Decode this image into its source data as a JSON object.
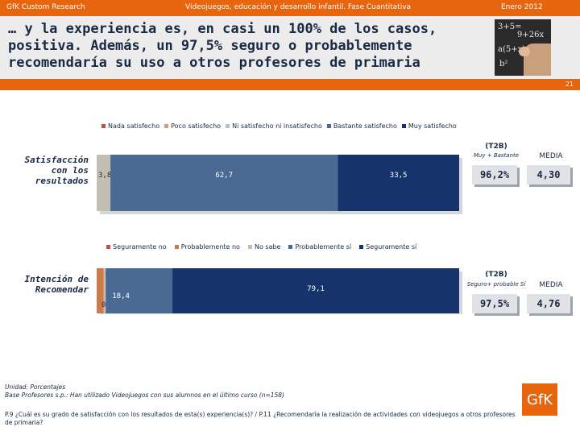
{
  "header": {
    "left": "GfK Custom Research",
    "center": "Videojuegos, educación y desarrollo infantil. Fase Cuantitativa",
    "right": "Enero 2012"
  },
  "title": "… y la experiencia es, en casi un 100% de los casos, positiva. Además, un 97,5% seguro o probablemente recomendaría su uso a otros profesores de primaria",
  "page_number": "21",
  "photo_chalk": [
    "3+5=",
    "9+26x",
    "a(5+x)",
    "b²"
  ],
  "colors": {
    "brand": "#e8650f"
  },
  "chart_data": [
    {
      "type": "bar",
      "orientation": "horizontal-stacked",
      "row_label": "Satisfacción con los resultados",
      "legend": [
        {
          "name": "Nada satisfecho",
          "color": "#c0504d"
        },
        {
          "name": "Poco satisfecho",
          "color": "#d99a77"
        },
        {
          "name": "Ni satisfecho ni insatisfecho",
          "color": "#c4bdb1"
        },
        {
          "name": "Bastante satisfecho",
          "color": "#4a6a94"
        },
        {
          "name": "Muy satisfecho",
          "color": "#16346b"
        }
      ],
      "series": [
        {
          "name": "Nada satisfecho",
          "value": 0,
          "label": ""
        },
        {
          "name": "Poco satisfecho",
          "value": 0,
          "label": ""
        },
        {
          "name": "Ni satisfecho ni insatisfecho",
          "value": 3.8,
          "label": "3,8"
        },
        {
          "name": "Bastante satisfecho",
          "value": 62.7,
          "label": "62,7"
        },
        {
          "name": "Muy satisfecho",
          "value": 33.5,
          "label": "33,5"
        }
      ],
      "t2b_header": "(T2B)",
      "t2b_sub": "Muy + Bastante",
      "t2b_value": "96,2%",
      "media_header": "MEDIA",
      "media_value": "4,30"
    },
    {
      "type": "bar",
      "orientation": "horizontal-stacked",
      "row_label": "Intención de Recomendar",
      "legend": [
        {
          "name": "Seguramente no",
          "color": "#c0504d"
        },
        {
          "name": "Probablemente no",
          "color": "#d07a4a"
        },
        {
          "name": "No sabe",
          "color": "#c4bdb1"
        },
        {
          "name": "Probablemente sí",
          "color": "#4a6a94"
        },
        {
          "name": "Seguramente sí",
          "color": "#16346b"
        }
      ],
      "series": [
        {
          "name": "Seguramente no",
          "value": 0,
          "label": ""
        },
        {
          "name": "Probablemente no",
          "value": 1.9,
          "label": "1,9"
        },
        {
          "name": "No sabe",
          "value": 0.6,
          "label": "0,6"
        },
        {
          "name": "Probablemente sí",
          "value": 18.4,
          "label": "18,4"
        },
        {
          "name": "Seguramente sí",
          "value": 79.1,
          "label": "79,1"
        }
      ],
      "t2b_header": "(T2B)",
      "t2b_sub": "Seguro+ probable Sí",
      "t2b_value": "97,5%",
      "media_header": "MEDIA",
      "media_value": "4,76"
    }
  ],
  "notes": {
    "line1": "Unidad: Porcentajes",
    "line2": "Base Profesores s.p.: Han utilizado Videojuegos con sus alumnos en el último curso (n=158)"
  },
  "question": "P.9 ¿Cuál es su grado de satisfacción con los resultados de esta(s) experiencia(s)? / P.11 ¿Recomendaría la realización de actividades con videojuegos a otros profesores de primaria?",
  "logo": "GfK"
}
